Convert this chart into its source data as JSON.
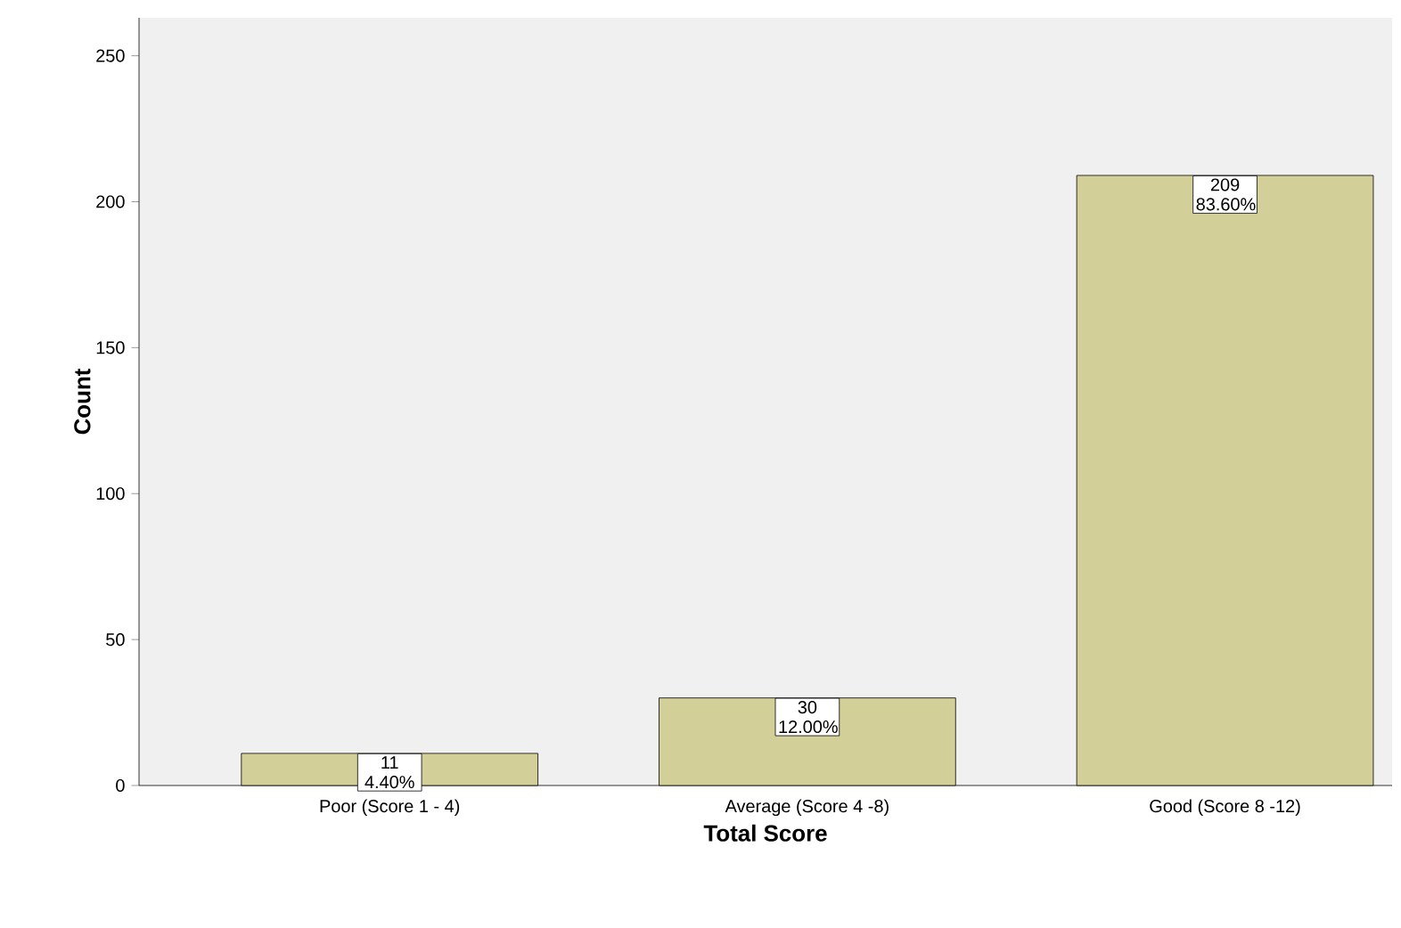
{
  "chart_data": {
    "type": "bar",
    "xlabel": "Total Score",
    "ylabel": "Count",
    "categories": [
      "Poor (Score 1 - 4)",
      "Average (Score 4 -8)",
      "Good (Score 8 -12)"
    ],
    "values": [
      11,
      30,
      209
    ],
    "value_labels": [
      "11 4.40%",
      "30 12.00%",
      "209 83.60%"
    ],
    "color": "#d3cf98",
    "ylim": [
      0,
      263
    ],
    "yticks": [
      0,
      50,
      100,
      150,
      200,
      250
    ],
    "grid": false
  }
}
